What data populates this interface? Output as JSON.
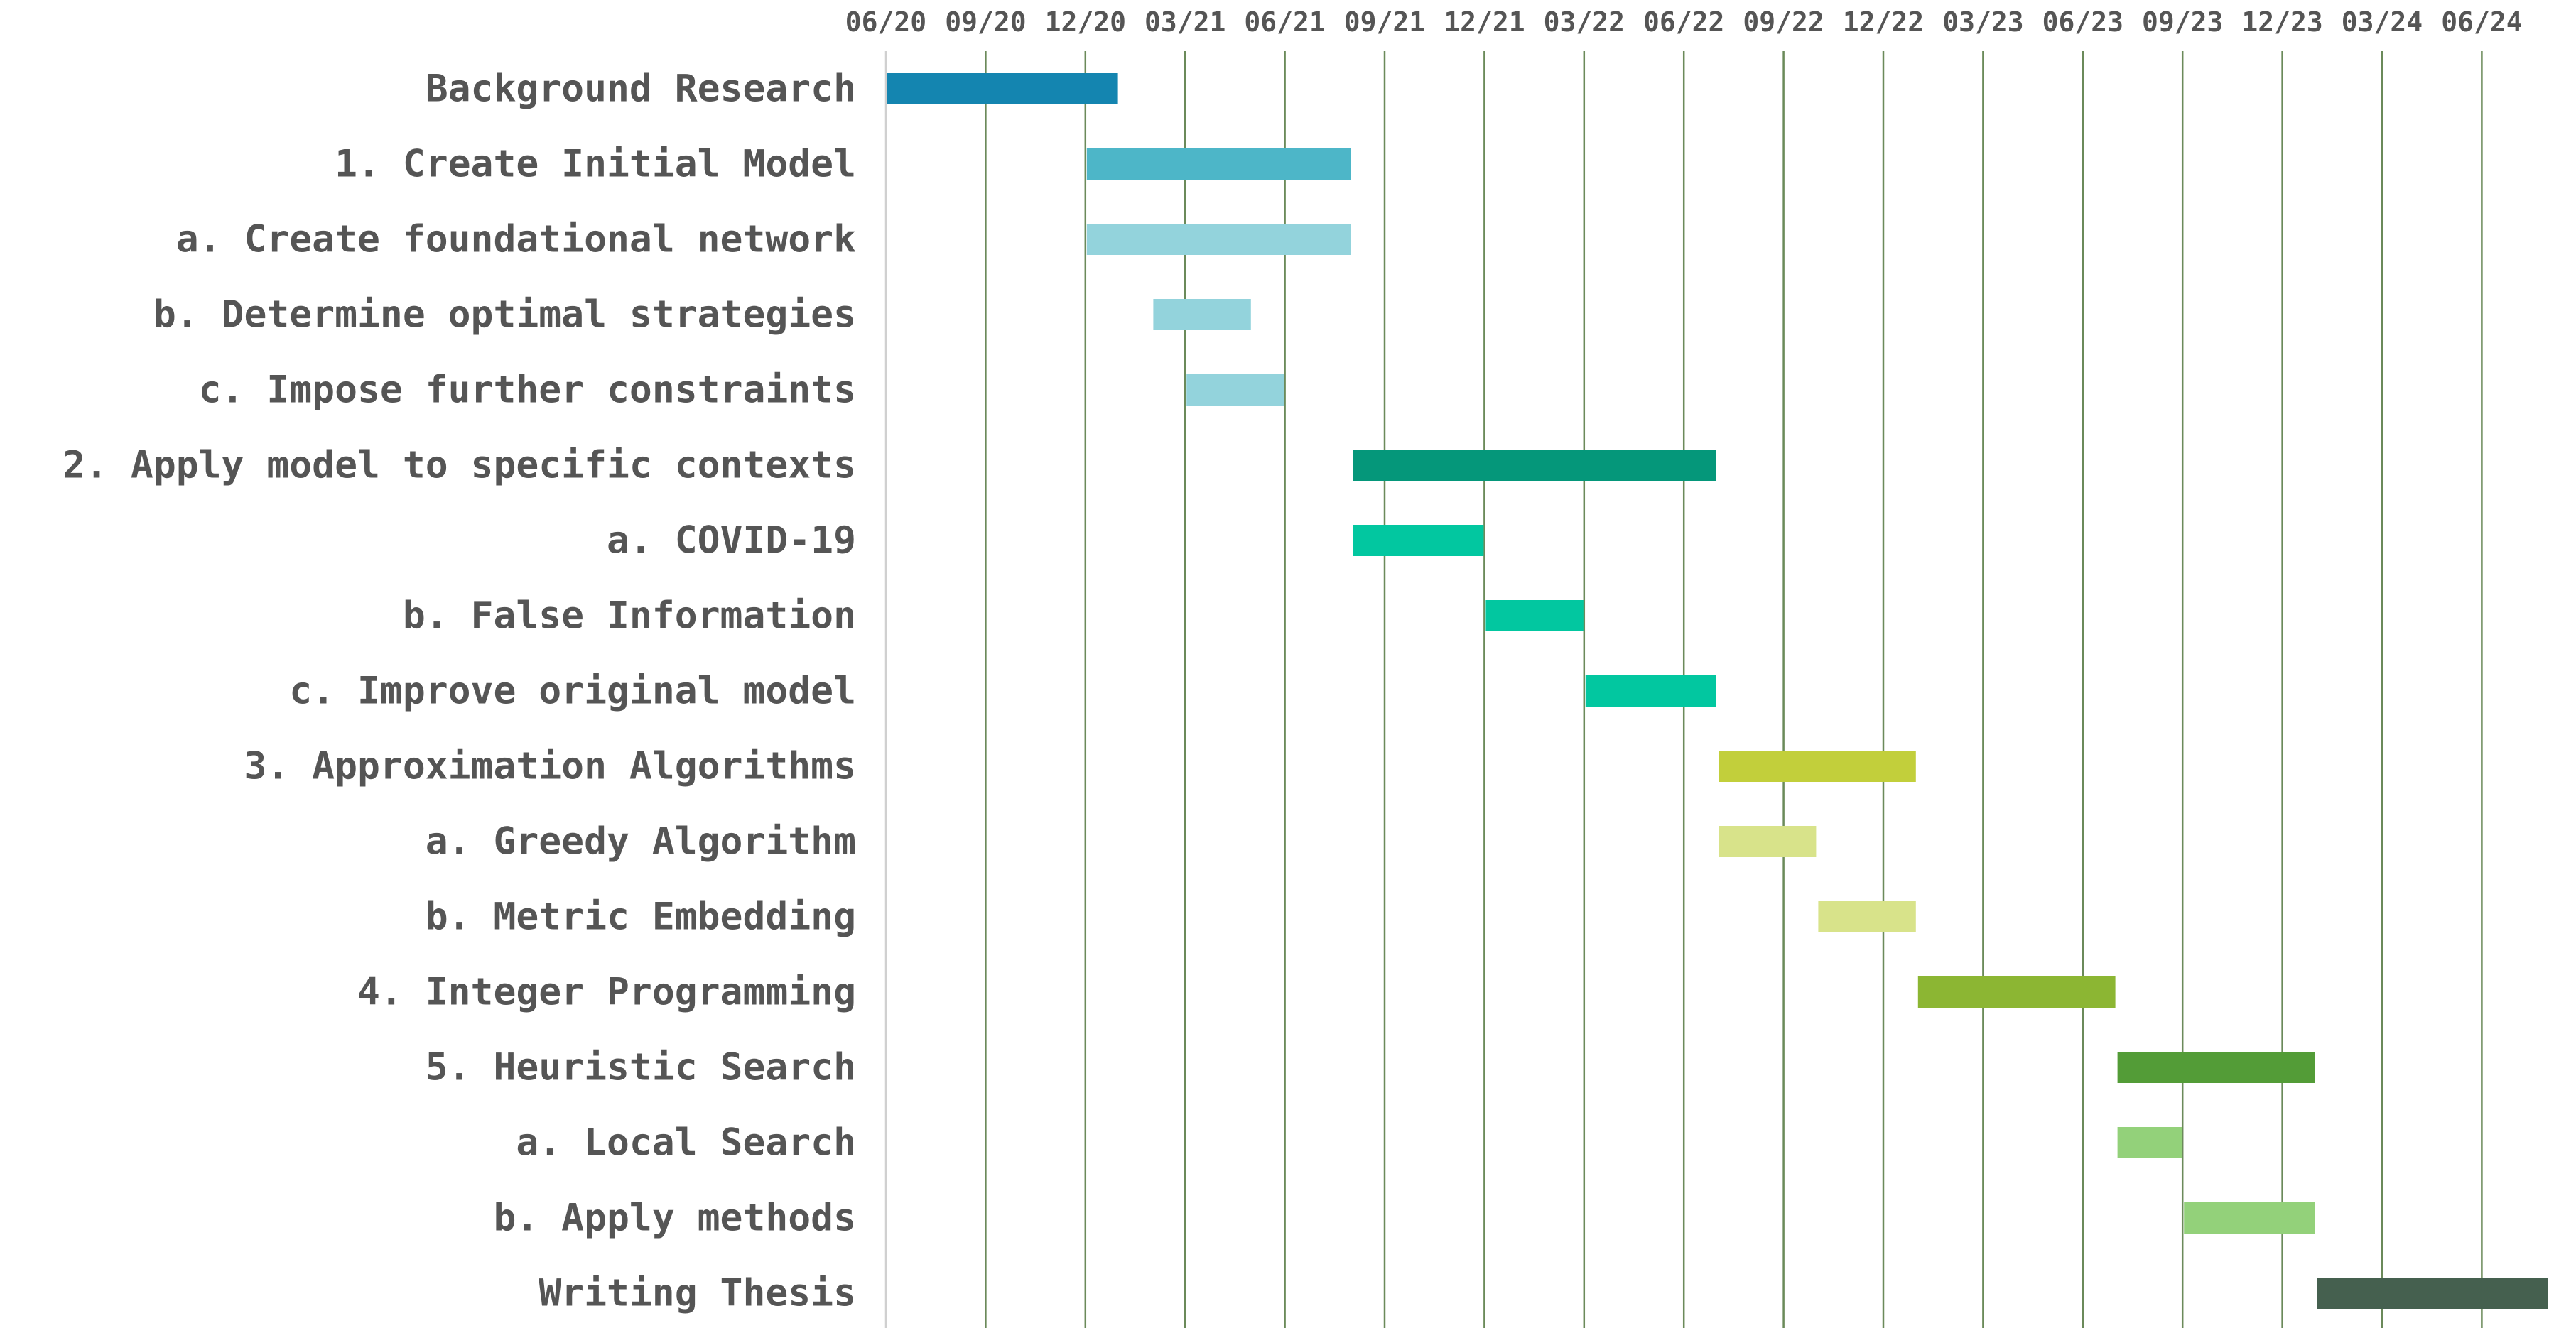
{
  "chart_data": {
    "type": "gantt",
    "x_axis": {
      "unit": "month",
      "range": [
        "2020-06",
        "2024-11"
      ],
      "tick_labels": [
        "06/20",
        "09/20",
        "12/20",
        "03/21",
        "06/21",
        "09/21",
        "12/21",
        "03/22",
        "06/22",
        "09/22",
        "12/22",
        "03/23",
        "06/23",
        "09/23",
        "12/23",
        "03/24",
        "06/24"
      ],
      "tick_position": "top",
      "grid": true
    },
    "tasks": [
      {
        "label": "Background Research",
        "start": "2020-06",
        "end": "2021-01",
        "color": "#1485b0"
      },
      {
        "label": "1. Create Initial Model",
        "start": "2020-12",
        "end": "2021-08",
        "color": "#4db6c8"
      },
      {
        "label": "a. Create foundational network",
        "start": "2020-12",
        "end": "2021-08",
        "color": "#93d3dc"
      },
      {
        "label": "b. Determine optimal strategies",
        "start": "2021-02",
        "end": "2021-05",
        "color": "#93d3dc"
      },
      {
        "label": "c. Impose further constraints",
        "start": "2021-03",
        "end": "2021-06",
        "color": "#93d3dc"
      },
      {
        "label": "2. Apply model to specific contexts",
        "start": "2021-08",
        "end": "2022-07",
        "color": "#05977a"
      },
      {
        "label": "a. COVID-19",
        "start": "2021-08",
        "end": "2021-12",
        "color": "#02c7a0"
      },
      {
        "label": "b. False Information",
        "start": "2021-12",
        "end": "2022-03",
        "color": "#02c7a0"
      },
      {
        "label": "c. Improve original model",
        "start": "2022-03",
        "end": "2022-07",
        "color": "#02c7a0"
      },
      {
        "label": "3. Approximation Algorithms",
        "start": "2022-07",
        "end": "2023-01",
        "color": "#c2cf3b"
      },
      {
        "label": "a. Greedy Algorithm",
        "start": "2022-07",
        "end": "2022-10",
        "color": "#d8e38a"
      },
      {
        "label": "b. Metric Embedding",
        "start": "2022-10",
        "end": "2023-01",
        "color": "#d8e38a"
      },
      {
        "label": "4. Integer Programming",
        "start": "2023-01",
        "end": "2023-07",
        "color": "#8cb633"
      },
      {
        "label": "5. Heuristic Search",
        "start": "2023-07",
        "end": "2024-01",
        "color": "#539c37"
      },
      {
        "label": "a. Local Search",
        "start": "2023-07",
        "end": "2023-09",
        "color": "#93d17a"
      },
      {
        "label": "b. Apply methods",
        "start": "2023-09",
        "end": "2024-01",
        "color": "#93d17a"
      },
      {
        "label": "Writing Thesis",
        "start": "2024-01",
        "end": "2024-08",
        "color": "#45604f"
      }
    ]
  }
}
